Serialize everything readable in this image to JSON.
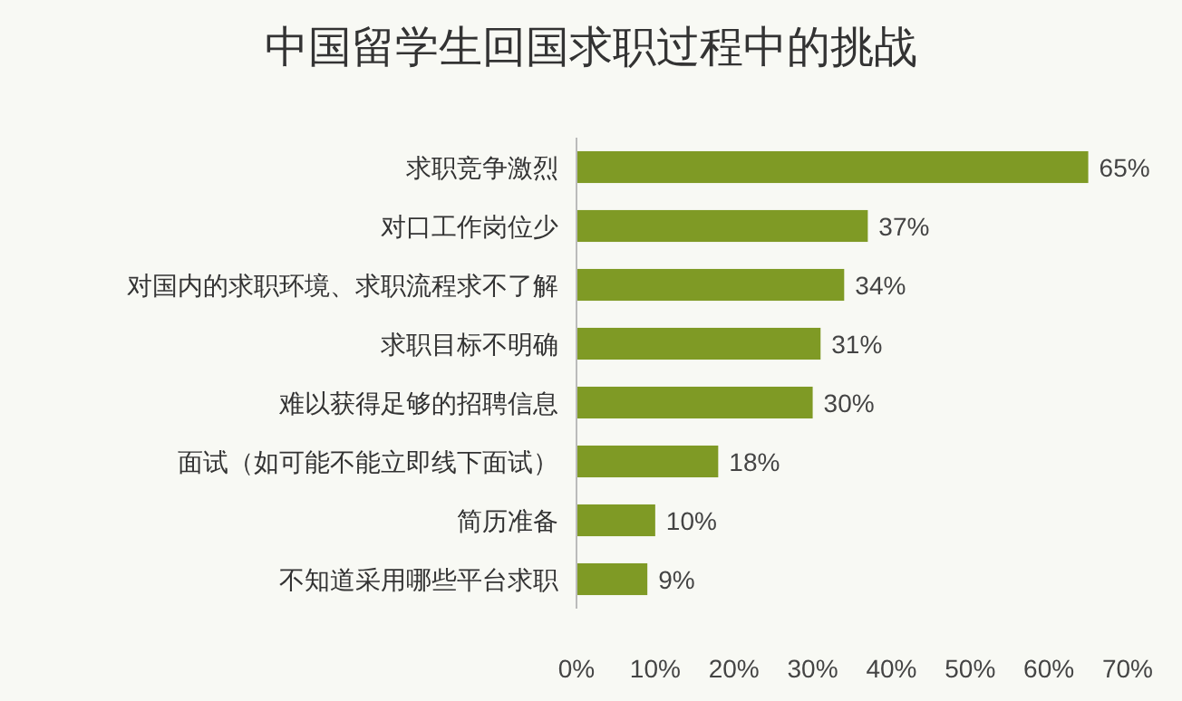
{
  "chart_data": {
    "type": "bar",
    "orientation": "horizontal",
    "title": "中国留学生回国求职过程中的挑战",
    "categories": [
      "求职竞争激烈",
      "对口工作岗位少",
      "对国内的求职环境、求职流程求不了解",
      "求职目标不明确",
      "难以获得足够的招聘信息",
      "面试（如可能不能立即线下面试）",
      "简历准备",
      "不知道采用哪些平台求职"
    ],
    "values": [
      65,
      37,
      34,
      31,
      30,
      18,
      10,
      9
    ],
    "value_labels": [
      "65%",
      "37%",
      "34%",
      "31%",
      "30%",
      "18%",
      "10%",
      "9%"
    ],
    "color": "#7f9a25",
    "xlim": [
      0,
      70
    ],
    "xticks": [
      {
        "value": 0,
        "label": "0%"
      },
      {
        "value": 10,
        "label": "10%"
      },
      {
        "value": 20,
        "label": "20%"
      },
      {
        "value": 30,
        "label": "30%"
      },
      {
        "value": 40,
        "label": "40%"
      },
      {
        "value": 50,
        "label": "50%"
      },
      {
        "value": 60,
        "label": "60%"
      },
      {
        "value": 70,
        "label": "70%"
      }
    ],
    "grid": false
  }
}
